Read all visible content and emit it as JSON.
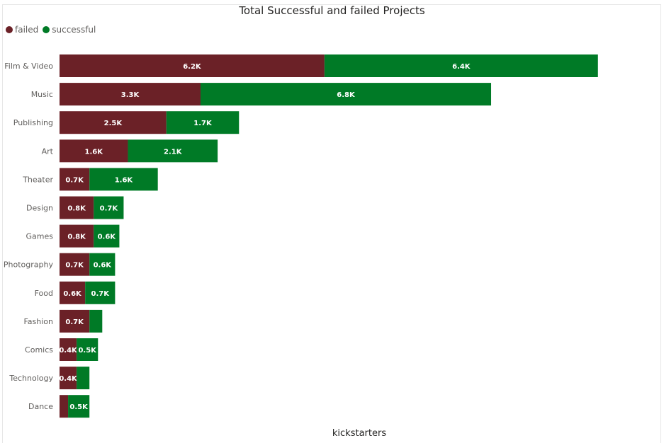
{
  "colors": {
    "failed": "#6b2127",
    "successful": "#007a26"
  },
  "chart_data": {
    "type": "bar",
    "orientation": "horizontal",
    "stacked": true,
    "title": "Total Successful and failed Projects",
    "xlabel": "kickstarters",
    "legend_position": "top-left",
    "categories": [
      "Film & Video",
      "Music",
      "Publishing",
      "Art",
      "Theater",
      "Design",
      "Games",
      "Photography",
      "Food",
      "Fashion",
      "Comics",
      "Technology",
      "Dance"
    ],
    "series": [
      {
        "name": "failed",
        "values": [
          6200,
          3300,
          2500,
          1600,
          700,
          800,
          800,
          700,
          600,
          700,
          400,
          400,
          200
        ],
        "labels": [
          "6.2K",
          "3.3K",
          "2.5K",
          "1.6K",
          "0.7K",
          "0.8K",
          "0.8K",
          "0.7K",
          "0.6K",
          "0.7K",
          "0.4K",
          "0.4K",
          ""
        ]
      },
      {
        "name": "successful",
        "values": [
          6400,
          6800,
          1700,
          2100,
          1600,
          700,
          600,
          600,
          700,
          300,
          500,
          300,
          500
        ],
        "labels": [
          "6.4K",
          "6.8K",
          "1.7K",
          "2.1K",
          "1.6K",
          "0.7K",
          "0.6K",
          "0.6K",
          "0.7K",
          "",
          "0.5K",
          "",
          "0.5K"
        ]
      }
    ]
  }
}
